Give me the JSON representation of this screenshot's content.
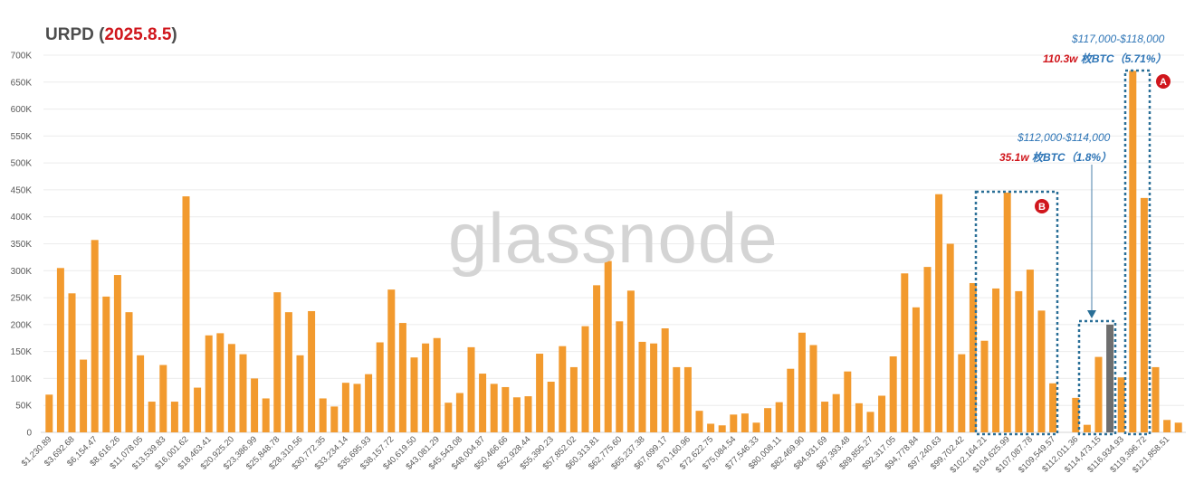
{
  "header": {
    "title_prefix": "URPD (",
    "title_date": "2025.8.5",
    "title_suffix": ")"
  },
  "watermark": "glassnode",
  "colors": {
    "bar": "#f29a2e",
    "highlight_bar": "#6e6e6e",
    "box": "#2a6f97",
    "label_red": "#d0161c",
    "label_blue": "#2e75b6",
    "grid": "#ececec"
  },
  "annotations": {
    "a": {
      "range": "$117,000-$118,000",
      "amount": "110.3w",
      "unit": " 枚BTC（5.71%）",
      "marker": "A"
    },
    "b": {
      "range": "$112,000-$114,000",
      "amount": "35.1w",
      "unit": " 枚BTC（1.8%）",
      "marker": "B"
    }
  },
  "chart_data": {
    "type": "bar",
    "title": "URPD (2025.8.5)",
    "ylim": [
      0,
      700000
    ],
    "yticks": [
      "0",
      "50K",
      "100K",
      "150K",
      "200K",
      "250K",
      "300K",
      "350K",
      "400K",
      "450K",
      "500K",
      "550K",
      "600K",
      "650K",
      "700K"
    ],
    "grid": true,
    "xtick_labels": [
      "$1,230.89",
      "$3,692.68",
      "$6,154.47",
      "$8,616.26",
      "$11,078.05",
      "$13,539.83",
      "$16,001.62",
      "$18,463.41",
      "$20,925.20",
      "$23,386.99",
      "$25,848.78",
      "$28,310.56",
      "$30,772.35",
      "$33,234.14",
      "$35,695.93",
      "$38,157.72",
      "$40,619.50",
      "$43,081.29",
      "$45,543.08",
      "$48,004.87",
      "$50,466.66",
      "$52,928.44",
      "$55,390.23",
      "$57,852.02",
      "$60,313.81",
      "$62,775.60",
      "$65,237.38",
      "$67,699.17",
      "$70,160.96",
      "$72,622.75",
      "$75,084.54",
      "$77,546.33",
      "$80,008.11",
      "$82,469.90",
      "$84,931.69",
      "$87,393.48",
      "$89,855.27",
      "$92,317.05",
      "$94,778.84",
      "$97,240.63",
      "$99,702.42",
      "$102,164.21",
      "$104,625.99",
      "$107,087.78",
      "$109,549.57",
      "$112,011.36",
      "$114,473.15",
      "$116,934.93",
      "$119,396.72",
      "$121,858.51"
    ],
    "values": [
      70000,
      305000,
      258000,
      135000,
      357000,
      252000,
      292000,
      223000,
      143000,
      57000,
      125000,
      57000,
      438000,
      83000,
      180000,
      184000,
      164000,
      145000,
      100000,
      63000,
      260000,
      223000,
      143000,
      225000,
      63000,
      48000,
      92000,
      90000,
      108000,
      167000,
      265000,
      203000,
      139000,
      165000,
      175000,
      55000,
      73000,
      158000,
      109000,
      90000,
      84000,
      65000,
      67000,
      146000,
      94000,
      160000,
      121000,
      197000,
      273000,
      318000,
      206000,
      263000,
      168000,
      165000,
      193000,
      121000,
      121000,
      40000,
      16000,
      13000,
      33000,
      35000,
      18000,
      45000,
      56000,
      118000,
      185000,
      162000,
      57000,
      71000,
      113000,
      54000,
      38000,
      68000,
      141000,
      295000,
      232000,
      307000,
      442000,
      350000,
      145000,
      277000,
      170000,
      267000,
      445000,
      262000,
      302000,
      226000,
      91000,
      0,
      64000,
      14000,
      140000,
      200000,
      102000,
      671000,
      435000,
      121000,
      23000,
      18000
    ],
    "highlight_index": 93
  }
}
